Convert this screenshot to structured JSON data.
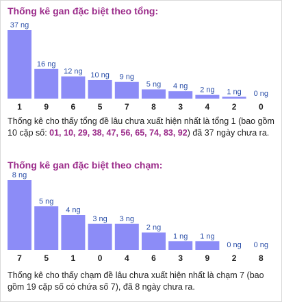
{
  "colors": {
    "bar": "#8c8cf7",
    "value_label": "#2b4fa8",
    "tick_label": "#222222",
    "title": "#9b2b8a",
    "highlight": "#9b2b8a"
  },
  "sections": [
    {
      "title": "Thống kê gan đặc biệt theo tổng:",
      "desc_parts": [
        {
          "text": "Thống kê cho thấy tổng đề lâu chưa xuất hiện nhất là tổng 1 (bao gồm 10 cặp số: ",
          "hl": false
        },
        {
          "text": "01, 10, 29, 38, 47, 56, 65, 74, 83, 92",
          "hl": true
        },
        {
          "text": ") đã 37 ngày chưa ra.",
          "hl": false
        }
      ]
    },
    {
      "title": "Thống kê gan đặc biệt theo chạm:",
      "desc_parts": [
        {
          "text": "Thống kê cho thấy chạm đề lâu chưa xuất hiện nhất là chạm 7 (bao gồm 19 cặp số có chứa số 7), đã 8 ngày chưa ra.",
          "hl": false
        }
      ]
    }
  ],
  "chart_data": [
    {
      "type": "bar",
      "categories": [
        "1",
        "9",
        "6",
        "5",
        "7",
        "8",
        "3",
        "4",
        "2",
        "0"
      ],
      "values": [
        37,
        16,
        12,
        10,
        9,
        5,
        4,
        2,
        1,
        0
      ],
      "data_labels": [
        "37 ng",
        "16 ng",
        "12 ng",
        "10 ng",
        "9 ng",
        "5 ng",
        "4 ng",
        "2 ng",
        "1 ng",
        "0 ng"
      ],
      "title": "Thống kê gan đặc biệt theo tổng:",
      "ylim": [
        0,
        37
      ]
    },
    {
      "type": "bar",
      "categories": [
        "7",
        "5",
        "1",
        "0",
        "4",
        "6",
        "3",
        "9",
        "2",
        "8"
      ],
      "values": [
        8,
        5,
        4,
        3,
        3,
        2,
        1,
        1,
        0,
        0
      ],
      "data_labels": [
        "8 ng",
        "5 ng",
        "4 ng",
        "3 ng",
        "3 ng",
        "2 ng",
        "1 ng",
        "1 ng",
        "0 ng",
        "0 ng"
      ],
      "title": "Thống kê gan đặc biệt theo chạm:",
      "ylim": [
        0,
        8
      ]
    }
  ]
}
